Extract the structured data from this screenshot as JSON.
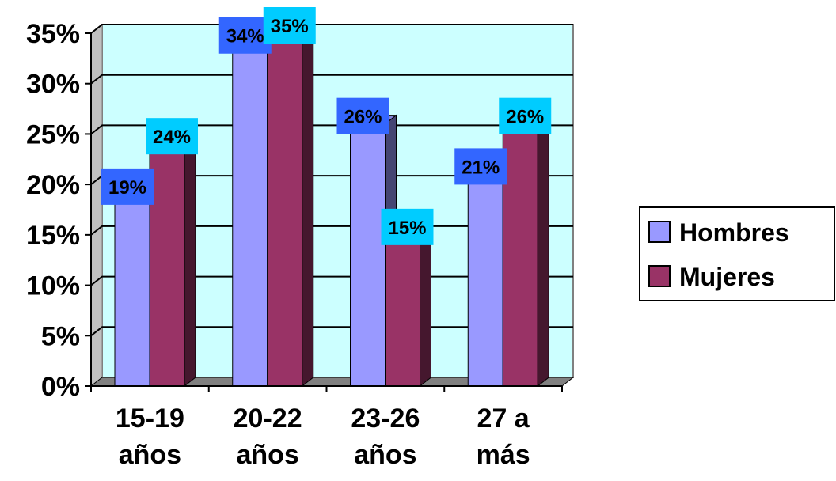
{
  "chart_data": {
    "type": "bar",
    "categories": [
      [
        "15-19",
        "años"
      ],
      [
        "20-22",
        "años"
      ],
      [
        "23-26",
        "años"
      ],
      [
        "27 a",
        "más"
      ]
    ],
    "series": [
      {
        "name": "Hombres",
        "values": [
          19,
          34,
          26,
          21
        ],
        "labels": [
          "19%",
          "34%",
          "26%",
          "21%"
        ],
        "color": "#9999ff",
        "label_bg": "#3366ff"
      },
      {
        "name": "Mujeres",
        "values": [
          24,
          35,
          15,
          26
        ],
        "labels": [
          "24%",
          "35%",
          "15%",
          "26%"
        ],
        "color": "#993366",
        "label_bg": "#00ccff"
      }
    ],
    "ylim": [
      0,
      35
    ],
    "yticks": [
      0,
      5,
      10,
      15,
      20,
      25,
      30,
      35
    ],
    "ytick_labels": [
      "0%",
      "5%",
      "10%",
      "15%",
      "20%",
      "25%",
      "30%",
      "35%"
    ],
    "grid": true,
    "legend_position": "right",
    "plot_background": "#ccffff"
  }
}
